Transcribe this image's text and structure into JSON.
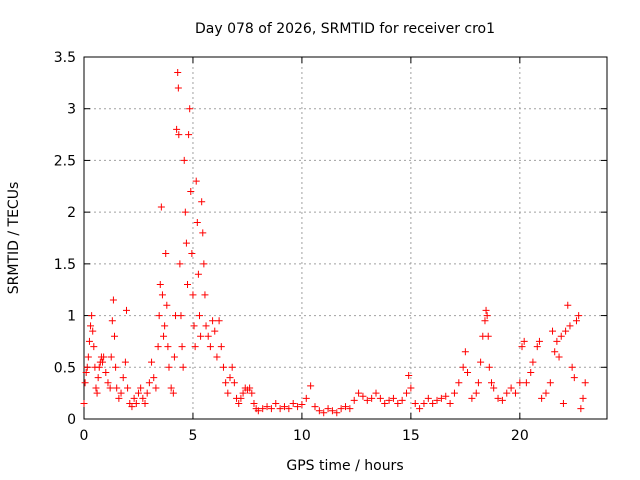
{
  "chart_data": {
    "type": "scatter",
    "title": "Day 078 of 2026, SRMTID for receiver cro1",
    "xlabel": "GPS time / hours",
    "ylabel": "SRMTID / TECUs",
    "xlim": [
      0,
      24
    ],
    "ylim": [
      0,
      3.5
    ],
    "x_ticks": [
      0,
      5,
      10,
      15,
      20
    ],
    "x_tick_labels": [
      "0",
      "5",
      "10",
      "15",
      "20"
    ],
    "y_ticks": [
      0,
      0.5,
      1,
      1.5,
      2,
      2.5,
      3,
      3.5
    ],
    "y_tick_labels": [
      "0",
      "0.5",
      "1",
      "1.5",
      "2",
      "2.5",
      "3",
      "3.5"
    ],
    "grid": true,
    "marker": "+",
    "series": [
      {
        "name": "SRMTID",
        "color": "#ff0000",
        "points": [
          [
            0.0,
            0.15
          ],
          [
            0.05,
            0.35
          ],
          [
            0.1,
            0.45
          ],
          [
            0.15,
            0.5
          ],
          [
            0.2,
            0.6
          ],
          [
            0.25,
            0.75
          ],
          [
            0.3,
            0.9
          ],
          [
            0.35,
            1.0
          ],
          [
            0.4,
            0.85
          ],
          [
            0.45,
            0.7
          ],
          [
            0.5,
            0.5
          ],
          [
            0.55,
            0.3
          ],
          [
            0.6,
            0.25
          ],
          [
            0.65,
            0.4
          ],
          [
            0.7,
            0.5
          ],
          [
            0.75,
            0.55
          ],
          [
            0.8,
            0.6
          ],
          [
            0.85,
            0.55
          ],
          [
            0.9,
            0.6
          ],
          [
            1.0,
            0.45
          ],
          [
            1.1,
            0.35
          ],
          [
            1.2,
            0.3
          ],
          [
            1.25,
            0.6
          ],
          [
            1.3,
            0.95
          ],
          [
            1.35,
            1.15
          ],
          [
            1.4,
            0.8
          ],
          [
            1.45,
            0.5
          ],
          [
            1.5,
            0.3
          ],
          [
            1.6,
            0.2
          ],
          [
            1.7,
            0.25
          ],
          [
            1.8,
            0.4
          ],
          [
            1.9,
            0.55
          ],
          [
            1.95,
            1.05
          ],
          [
            2.0,
            0.3
          ],
          [
            2.1,
            0.15
          ],
          [
            2.2,
            0.12
          ],
          [
            2.3,
            0.2
          ],
          [
            2.4,
            0.15
          ],
          [
            2.5,
            0.25
          ],
          [
            2.6,
            0.3
          ],
          [
            2.7,
            0.2
          ],
          [
            2.8,
            0.15
          ],
          [
            2.9,
            0.25
          ],
          [
            3.0,
            0.35
          ],
          [
            3.1,
            0.55
          ],
          [
            3.2,
            0.4
          ],
          [
            3.3,
            0.3
          ],
          [
            3.4,
            0.7
          ],
          [
            3.45,
            1.0
          ],
          [
            3.5,
            1.3
          ],
          [
            3.55,
            2.05
          ],
          [
            3.6,
            1.2
          ],
          [
            3.65,
            0.8
          ],
          [
            3.7,
            0.9
          ],
          [
            3.75,
            1.6
          ],
          [
            3.8,
            1.1
          ],
          [
            3.85,
            0.7
          ],
          [
            3.9,
            0.5
          ],
          [
            4.0,
            0.3
          ],
          [
            4.1,
            0.25
          ],
          [
            4.15,
            0.6
          ],
          [
            4.2,
            1.0
          ],
          [
            4.25,
            2.8
          ],
          [
            4.3,
            3.35
          ],
          [
            4.33,
            3.2
          ],
          [
            4.35,
            2.75
          ],
          [
            4.4,
            1.5
          ],
          [
            4.45,
            1.0
          ],
          [
            4.5,
            0.7
          ],
          [
            4.55,
            0.5
          ],
          [
            4.6,
            2.5
          ],
          [
            4.65,
            2.0
          ],
          [
            4.7,
            1.7
          ],
          [
            4.75,
            1.3
          ],
          [
            4.8,
            2.75
          ],
          [
            4.85,
            3.0
          ],
          [
            4.9,
            2.2
          ],
          [
            4.95,
            1.6
          ],
          [
            5.0,
            1.2
          ],
          [
            5.05,
            0.9
          ],
          [
            5.1,
            0.7
          ],
          [
            5.15,
            2.3
          ],
          [
            5.2,
            1.9
          ],
          [
            5.25,
            1.4
          ],
          [
            5.3,
            1.0
          ],
          [
            5.35,
            0.8
          ],
          [
            5.4,
            2.1
          ],
          [
            5.45,
            1.8
          ],
          [
            5.5,
            1.5
          ],
          [
            5.55,
            1.2
          ],
          [
            5.6,
            0.9
          ],
          [
            5.7,
            0.8
          ],
          [
            5.8,
            0.7
          ],
          [
            5.9,
            0.95
          ],
          [
            6.0,
            0.85
          ],
          [
            6.1,
            0.6
          ],
          [
            6.2,
            0.95
          ],
          [
            6.3,
            0.7
          ],
          [
            6.4,
            0.5
          ],
          [
            6.5,
            0.35
          ],
          [
            6.6,
            0.25
          ],
          [
            6.7,
            0.4
          ],
          [
            6.8,
            0.5
          ],
          [
            6.9,
            0.35
          ],
          [
            7.0,
            0.2
          ],
          [
            7.1,
            0.15
          ],
          [
            7.2,
            0.2
          ],
          [
            7.3,
            0.25
          ],
          [
            7.4,
            0.3
          ],
          [
            7.5,
            0.28
          ],
          [
            7.6,
            0.3
          ],
          [
            7.7,
            0.25
          ],
          [
            7.8,
            0.15
          ],
          [
            7.9,
            0.1
          ],
          [
            8.0,
            0.08
          ],
          [
            8.2,
            0.1
          ],
          [
            8.4,
            0.12
          ],
          [
            8.6,
            0.1
          ],
          [
            8.8,
            0.15
          ],
          [
            9.0,
            0.1
          ],
          [
            9.2,
            0.12
          ],
          [
            9.4,
            0.1
          ],
          [
            9.6,
            0.15
          ],
          [
            9.8,
            0.12
          ],
          [
            10.0,
            0.14
          ],
          [
            10.2,
            0.2
          ],
          [
            10.4,
            0.32
          ],
          [
            10.6,
            0.12
          ],
          [
            10.8,
            0.08
          ],
          [
            11.0,
            0.06
          ],
          [
            11.2,
            0.1
          ],
          [
            11.4,
            0.08
          ],
          [
            11.6,
            0.06
          ],
          [
            11.8,
            0.1
          ],
          [
            12.0,
            0.12
          ],
          [
            12.2,
            0.1
          ],
          [
            12.4,
            0.18
          ],
          [
            12.6,
            0.25
          ],
          [
            12.8,
            0.22
          ],
          [
            13.0,
            0.18
          ],
          [
            13.2,
            0.2
          ],
          [
            13.4,
            0.25
          ],
          [
            13.6,
            0.2
          ],
          [
            13.8,
            0.15
          ],
          [
            14.0,
            0.18
          ],
          [
            14.2,
            0.2
          ],
          [
            14.4,
            0.15
          ],
          [
            14.6,
            0.18
          ],
          [
            14.8,
            0.25
          ],
          [
            14.9,
            0.42
          ],
          [
            15.0,
            0.3
          ],
          [
            15.2,
            0.15
          ],
          [
            15.4,
            0.1
          ],
          [
            15.6,
            0.15
          ],
          [
            15.8,
            0.2
          ],
          [
            16.0,
            0.15
          ],
          [
            16.2,
            0.18
          ],
          [
            16.4,
            0.2
          ],
          [
            16.6,
            0.22
          ],
          [
            16.8,
            0.15
          ],
          [
            17.0,
            0.25
          ],
          [
            17.2,
            0.35
          ],
          [
            17.4,
            0.5
          ],
          [
            17.5,
            0.65
          ],
          [
            17.6,
            0.45
          ],
          [
            17.8,
            0.2
          ],
          [
            18.0,
            0.25
          ],
          [
            18.1,
            0.35
          ],
          [
            18.2,
            0.55
          ],
          [
            18.3,
            0.8
          ],
          [
            18.4,
            0.95
          ],
          [
            18.45,
            1.05
          ],
          [
            18.5,
            1.0
          ],
          [
            18.55,
            0.8
          ],
          [
            18.6,
            0.5
          ],
          [
            18.7,
            0.35
          ],
          [
            18.8,
            0.3
          ],
          [
            19.0,
            0.2
          ],
          [
            19.2,
            0.18
          ],
          [
            19.4,
            0.25
          ],
          [
            19.6,
            0.3
          ],
          [
            19.8,
            0.25
          ],
          [
            20.0,
            0.35
          ],
          [
            20.1,
            0.7
          ],
          [
            20.2,
            0.75
          ],
          [
            20.3,
            0.35
          ],
          [
            20.5,
            0.45
          ],
          [
            20.6,
            0.55
          ],
          [
            20.8,
            0.7
          ],
          [
            20.9,
            0.75
          ],
          [
            21.0,
            0.2
          ],
          [
            21.2,
            0.25
          ],
          [
            21.4,
            0.35
          ],
          [
            21.5,
            0.85
          ],
          [
            21.6,
            0.65
          ],
          [
            21.7,
            0.75
          ],
          [
            21.8,
            0.6
          ],
          [
            21.9,
            0.8
          ],
          [
            22.0,
            0.15
          ],
          [
            22.1,
            0.85
          ],
          [
            22.2,
            1.1
          ],
          [
            22.3,
            0.9
          ],
          [
            22.4,
            0.5
          ],
          [
            22.5,
            0.4
          ],
          [
            22.6,
            0.95
          ],
          [
            22.7,
            1.0
          ],
          [
            22.8,
            0.1
          ],
          [
            22.9,
            0.2
          ],
          [
            23.0,
            0.35
          ]
        ]
      }
    ]
  }
}
